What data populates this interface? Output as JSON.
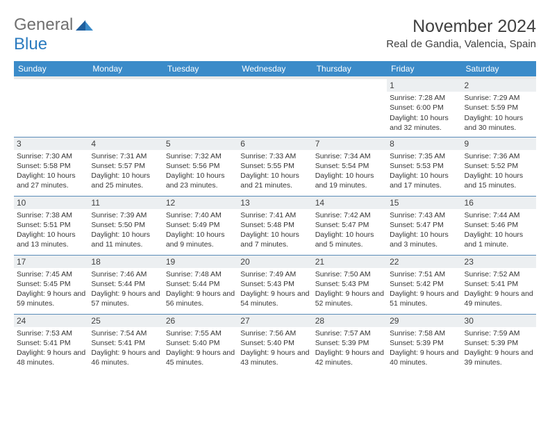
{
  "brand": {
    "name_part1": "General",
    "name_part2": "Blue"
  },
  "header": {
    "title": "November 2024",
    "location": "Real de Gandia, Valencia, Spain"
  },
  "colors": {
    "header_bg": "#3b8bc9",
    "header_text": "#ffffff",
    "daynum_bg": "#eceff1",
    "row_border": "#5a8cb8",
    "title_color": "#404040",
    "logo_gray": "#707070",
    "logo_blue": "#2b7bbf"
  },
  "dayNames": [
    "Sunday",
    "Monday",
    "Tuesday",
    "Wednesday",
    "Thursday",
    "Friday",
    "Saturday"
  ],
  "weeks": [
    [
      null,
      null,
      null,
      null,
      null,
      {
        "num": "1",
        "sunrise": "Sunrise: 7:28 AM",
        "sunset": "Sunset: 6:00 PM",
        "daylight": "Daylight: 10 hours and 32 minutes."
      },
      {
        "num": "2",
        "sunrise": "Sunrise: 7:29 AM",
        "sunset": "Sunset: 5:59 PM",
        "daylight": "Daylight: 10 hours and 30 minutes."
      }
    ],
    [
      {
        "num": "3",
        "sunrise": "Sunrise: 7:30 AM",
        "sunset": "Sunset: 5:58 PM",
        "daylight": "Daylight: 10 hours and 27 minutes."
      },
      {
        "num": "4",
        "sunrise": "Sunrise: 7:31 AM",
        "sunset": "Sunset: 5:57 PM",
        "daylight": "Daylight: 10 hours and 25 minutes."
      },
      {
        "num": "5",
        "sunrise": "Sunrise: 7:32 AM",
        "sunset": "Sunset: 5:56 PM",
        "daylight": "Daylight: 10 hours and 23 minutes."
      },
      {
        "num": "6",
        "sunrise": "Sunrise: 7:33 AM",
        "sunset": "Sunset: 5:55 PM",
        "daylight": "Daylight: 10 hours and 21 minutes."
      },
      {
        "num": "7",
        "sunrise": "Sunrise: 7:34 AM",
        "sunset": "Sunset: 5:54 PM",
        "daylight": "Daylight: 10 hours and 19 minutes."
      },
      {
        "num": "8",
        "sunrise": "Sunrise: 7:35 AM",
        "sunset": "Sunset: 5:53 PM",
        "daylight": "Daylight: 10 hours and 17 minutes."
      },
      {
        "num": "9",
        "sunrise": "Sunrise: 7:36 AM",
        "sunset": "Sunset: 5:52 PM",
        "daylight": "Daylight: 10 hours and 15 minutes."
      }
    ],
    [
      {
        "num": "10",
        "sunrise": "Sunrise: 7:38 AM",
        "sunset": "Sunset: 5:51 PM",
        "daylight": "Daylight: 10 hours and 13 minutes."
      },
      {
        "num": "11",
        "sunrise": "Sunrise: 7:39 AM",
        "sunset": "Sunset: 5:50 PM",
        "daylight": "Daylight: 10 hours and 11 minutes."
      },
      {
        "num": "12",
        "sunrise": "Sunrise: 7:40 AM",
        "sunset": "Sunset: 5:49 PM",
        "daylight": "Daylight: 10 hours and 9 minutes."
      },
      {
        "num": "13",
        "sunrise": "Sunrise: 7:41 AM",
        "sunset": "Sunset: 5:48 PM",
        "daylight": "Daylight: 10 hours and 7 minutes."
      },
      {
        "num": "14",
        "sunrise": "Sunrise: 7:42 AM",
        "sunset": "Sunset: 5:47 PM",
        "daylight": "Daylight: 10 hours and 5 minutes."
      },
      {
        "num": "15",
        "sunrise": "Sunrise: 7:43 AM",
        "sunset": "Sunset: 5:47 PM",
        "daylight": "Daylight: 10 hours and 3 minutes."
      },
      {
        "num": "16",
        "sunrise": "Sunrise: 7:44 AM",
        "sunset": "Sunset: 5:46 PM",
        "daylight": "Daylight: 10 hours and 1 minute."
      }
    ],
    [
      {
        "num": "17",
        "sunrise": "Sunrise: 7:45 AM",
        "sunset": "Sunset: 5:45 PM",
        "daylight": "Daylight: 9 hours and 59 minutes."
      },
      {
        "num": "18",
        "sunrise": "Sunrise: 7:46 AM",
        "sunset": "Sunset: 5:44 PM",
        "daylight": "Daylight: 9 hours and 57 minutes."
      },
      {
        "num": "19",
        "sunrise": "Sunrise: 7:48 AM",
        "sunset": "Sunset: 5:44 PM",
        "daylight": "Daylight: 9 hours and 56 minutes."
      },
      {
        "num": "20",
        "sunrise": "Sunrise: 7:49 AM",
        "sunset": "Sunset: 5:43 PM",
        "daylight": "Daylight: 9 hours and 54 minutes."
      },
      {
        "num": "21",
        "sunrise": "Sunrise: 7:50 AM",
        "sunset": "Sunset: 5:43 PM",
        "daylight": "Daylight: 9 hours and 52 minutes."
      },
      {
        "num": "22",
        "sunrise": "Sunrise: 7:51 AM",
        "sunset": "Sunset: 5:42 PM",
        "daylight": "Daylight: 9 hours and 51 minutes."
      },
      {
        "num": "23",
        "sunrise": "Sunrise: 7:52 AM",
        "sunset": "Sunset: 5:41 PM",
        "daylight": "Daylight: 9 hours and 49 minutes."
      }
    ],
    [
      {
        "num": "24",
        "sunrise": "Sunrise: 7:53 AM",
        "sunset": "Sunset: 5:41 PM",
        "daylight": "Daylight: 9 hours and 48 minutes."
      },
      {
        "num": "25",
        "sunrise": "Sunrise: 7:54 AM",
        "sunset": "Sunset: 5:41 PM",
        "daylight": "Daylight: 9 hours and 46 minutes."
      },
      {
        "num": "26",
        "sunrise": "Sunrise: 7:55 AM",
        "sunset": "Sunset: 5:40 PM",
        "daylight": "Daylight: 9 hours and 45 minutes."
      },
      {
        "num": "27",
        "sunrise": "Sunrise: 7:56 AM",
        "sunset": "Sunset: 5:40 PM",
        "daylight": "Daylight: 9 hours and 43 minutes."
      },
      {
        "num": "28",
        "sunrise": "Sunrise: 7:57 AM",
        "sunset": "Sunset: 5:39 PM",
        "daylight": "Daylight: 9 hours and 42 minutes."
      },
      {
        "num": "29",
        "sunrise": "Sunrise: 7:58 AM",
        "sunset": "Sunset: 5:39 PM",
        "daylight": "Daylight: 9 hours and 40 minutes."
      },
      {
        "num": "30",
        "sunrise": "Sunrise: 7:59 AM",
        "sunset": "Sunset: 5:39 PM",
        "daylight": "Daylight: 9 hours and 39 minutes."
      }
    ]
  ]
}
